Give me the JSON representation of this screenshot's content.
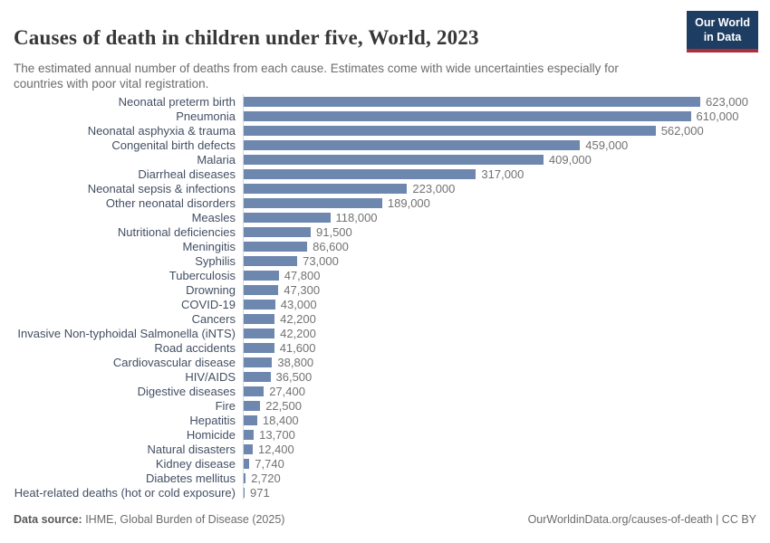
{
  "header": {
    "title": "Causes of death in children under five, World, 2023",
    "subtitle": "The estimated annual number of deaths from each cause. Estimates come with wide uncertainties especially for countries with poor vital registration.",
    "logo": {
      "line1": "Our World",
      "line2": "in Data"
    }
  },
  "chart_data": {
    "type": "bar",
    "orientation": "horizontal",
    "title": "Causes of death in children under five, World, 2023",
    "xlabel": "",
    "ylabel": "",
    "xlim": [
      0,
      623000
    ],
    "grid": false,
    "legend": "none",
    "bar_color": "#6e87af",
    "categories": [
      "Neonatal preterm birth",
      "Pneumonia",
      "Neonatal asphyxia & trauma",
      "Congenital birth defects",
      "Malaria",
      "Diarrheal diseases",
      "Neonatal sepsis & infections",
      "Other neonatal disorders",
      "Measles",
      "Nutritional deficiencies",
      "Meningitis",
      "Syphilis",
      "Tuberculosis",
      "Drowning",
      "COVID-19",
      "Cancers",
      "Invasive Non-typhoidal Salmonella (iNTS)",
      "Road accidents",
      "Cardiovascular disease",
      "HIV/AIDS",
      "Digestive diseases",
      "Fire",
      "Hepatitis",
      "Homicide",
      "Natural disasters",
      "Kidney disease",
      "Diabetes mellitus",
      "Heat-related deaths (hot or cold exposure)"
    ],
    "values": [
      623000,
      610000,
      562000,
      459000,
      409000,
      317000,
      223000,
      189000,
      118000,
      91500,
      86600,
      73000,
      47800,
      47300,
      43000,
      42200,
      42200,
      41600,
      38800,
      36500,
      27400,
      22500,
      18400,
      13700,
      12400,
      7740,
      2720,
      971
    ],
    "value_labels": [
      "623,000",
      "610,000",
      "562,000",
      "459,000",
      "409,000",
      "317,000",
      "223,000",
      "189,000",
      "118,000",
      "91,500",
      "86,600",
      "73,000",
      "47,800",
      "47,300",
      "43,000",
      "42,200",
      "42,200",
      "41,600",
      "38,800",
      "36,500",
      "27,400",
      "22,500",
      "18,400",
      "13,700",
      "12,400",
      "7,740",
      "2,720",
      "971"
    ]
  },
  "footer": {
    "source_label": "Data source:",
    "source_text": " IHME, Global Burden of Disease (2025)",
    "attribution": "OurWorldinData.org/causes-of-death | CC BY"
  },
  "colors": {
    "bar": "#6e87af",
    "logo_navy": "#1d3d63",
    "logo_red": "#b02e3a",
    "axis_line": "#d8d8d8",
    "label_text": "#434f63",
    "value_text": "#727272"
  }
}
